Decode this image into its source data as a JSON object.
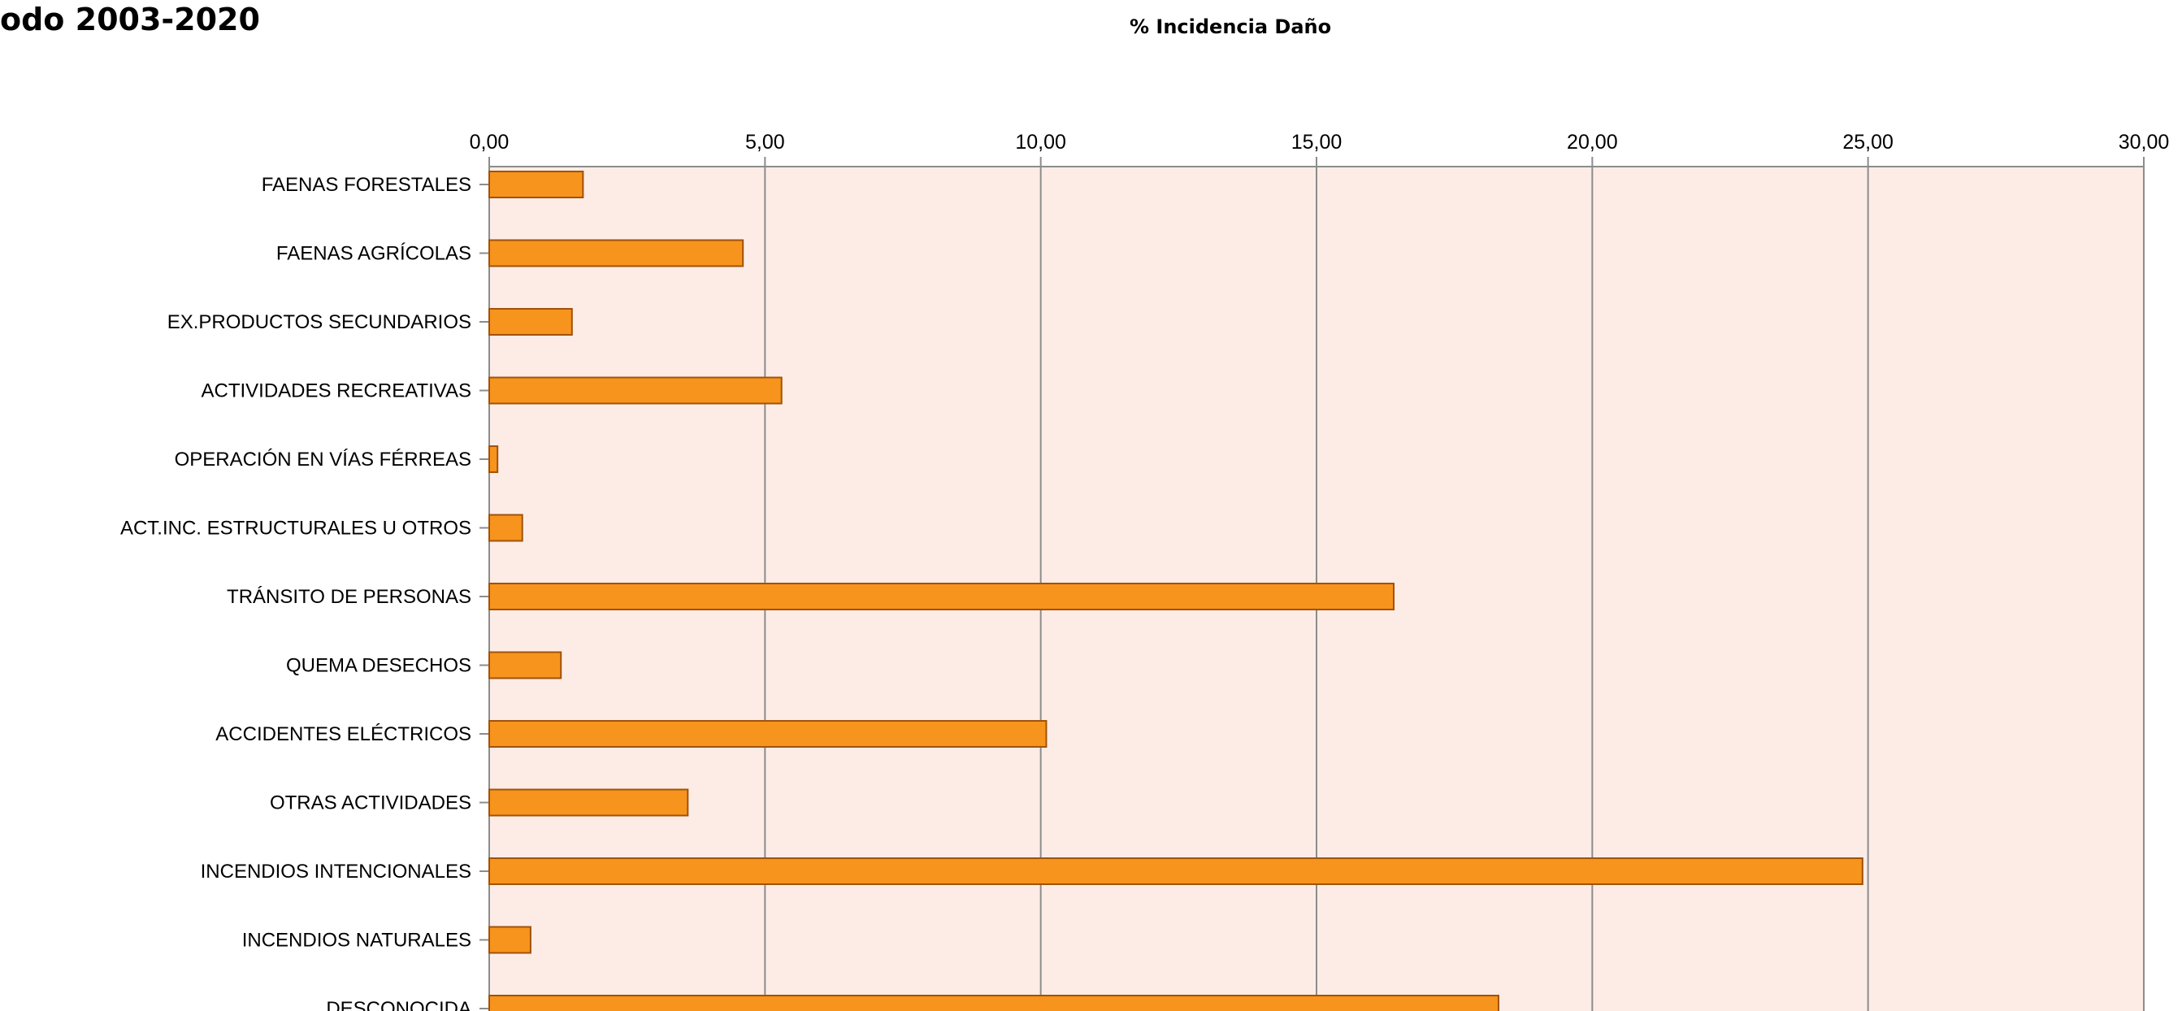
{
  "header": {
    "title": "odo 2003-2020"
  },
  "chart_data": {
    "type": "bar",
    "orientation": "horizontal",
    "title": "odo 2003-2020",
    "xlabel": "% Incidencia Daño",
    "ylabel": "",
    "xlim": [
      0,
      30
    ],
    "xticks": [
      0,
      5,
      10,
      15,
      20,
      25,
      30
    ],
    "xtick_labels": [
      "0,00",
      "5,00",
      "10,00",
      "15,00",
      "20,00",
      "25,00",
      "30,00"
    ],
    "x_axis_position": "top",
    "grid": "vertical",
    "categories": [
      "FAENAS FORESTALES",
      "FAENAS AGRÍCOLAS",
      "EX.PRODUCTOS SECUNDARIOS",
      "ACTIVIDADES RECREATIVAS",
      "OPERACIÓN EN VÍAS FÉRREAS",
      "ACT.INC. ESTRUCTURALES U OTROS",
      "TRÁNSITO DE PERSONAS",
      "QUEMA DESECHOS",
      "ACCIDENTES ELÉCTRICOS",
      "OTRAS ACTIVIDADES",
      "INCENDIOS INTENCIONALES",
      "INCENDIOS NATURALES",
      "DESCONOCIDA"
    ],
    "values": [
      1.7,
      4.6,
      1.5,
      5.3,
      0.15,
      0.6,
      16.4,
      1.3,
      10.1,
      3.6,
      24.9,
      0.75,
      18.3
    ],
    "colors": {
      "bar_fill": "#F7941D",
      "bar_stroke": "#A0520A",
      "plot_background": "#FDECE6",
      "gridline": "#8C8C8C"
    }
  }
}
